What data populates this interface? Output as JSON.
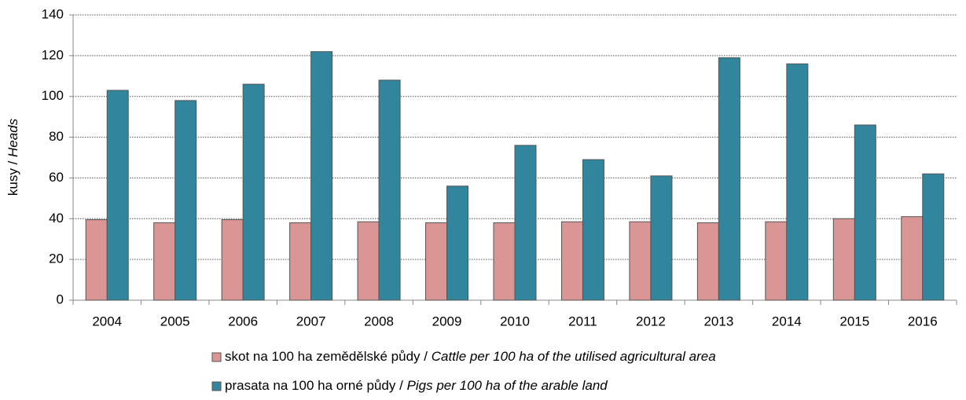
{
  "chart_data": {
    "type": "bar",
    "ylabel": "kusy / Heads",
    "categories": [
      "2004",
      "2005",
      "2006",
      "2007",
      "2008",
      "2009",
      "2010",
      "2011",
      "2012",
      "2013",
      "2014",
      "2015",
      "2016"
    ],
    "series": [
      {
        "name": "skot na 100 ha zemědělské půdy / Cattle per 100 ha of the utilised agricultural area",
        "color": "#d99694",
        "values": [
          39.5,
          38,
          39.5,
          38,
          38.5,
          38,
          38,
          38.5,
          38.5,
          38,
          38.5,
          40,
          41
        ]
      },
      {
        "name": "prasata na 100 ha orné půdy / Pigs per 100 ha of the arable land",
        "color": "#31859c",
        "values": [
          103,
          98,
          106,
          122,
          108,
          56,
          76,
          69,
          61,
          119,
          116,
          86,
          62
        ]
      }
    ],
    "ylim": [
      0,
      140
    ],
    "yticks": [
      0,
      20,
      40,
      60,
      80,
      100,
      120,
      140
    ],
    "grid": true
  }
}
